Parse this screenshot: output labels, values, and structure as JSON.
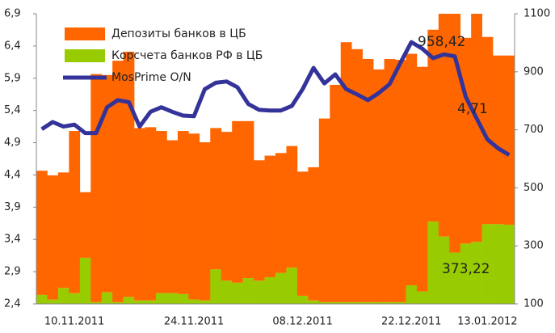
{
  "chart_data": {
    "type": "bar_line",
    "categories": [
      null,
      null,
      null,
      "10.11.2011",
      null,
      null,
      null,
      null,
      null,
      null,
      null,
      null,
      null,
      null,
      "24.11.2011",
      null,
      null,
      null,
      null,
      null,
      null,
      null,
      null,
      null,
      "08.12.2011",
      null,
      null,
      null,
      null,
      null,
      null,
      null,
      null,
      null,
      "22.12.2011",
      null,
      null,
      null,
      null,
      null,
      null,
      "13.01.2012",
      null,
      null
    ],
    "series": [
      {
        "name": "Корсчета банков РФ в ЦБ",
        "color": "#99cc00",
        "axis": "y2",
        "kind": "bar",
        "values": [
          131,
          115,
          155,
          137,
          259,
          106,
          140,
          106,
          124,
          112,
          112,
          137,
          137,
          134,
          115,
          112,
          219,
          180,
          173,
          189,
          180,
          192,
          207,
          225,
          128,
          112,
          106,
          106,
          106,
          106,
          106,
          106,
          106,
          106,
          164,
          143,
          384,
          332,
          277,
          308,
          314,
          375,
          375,
          373
        ]
      },
      {
        "name": "Депозиты банков в ЦБ",
        "color": "#ff6600",
        "axis": "y2",
        "kind": "bar",
        "values": [
          428,
          428,
          398,
          559,
          226,
          786,
          749,
          832,
          845,
          594,
          597,
          559,
          527,
          562,
          572,
          545,
          487,
          513,
          557,
          541,
          415,
          419,
          413,
          419,
          428,
          459,
          633,
          749,
          896,
          872,
          838,
          802,
          838,
          835,
          798,
          774,
          661,
          817,
          866,
          709,
          789,
          645,
          581,
          583
        ]
      },
      {
        "name": "MosPrime O/N",
        "color": "#333399",
        "axis": "y",
        "kind": "line",
        "values": [
          5.11,
          5.22,
          5.15,
          5.18,
          5.05,
          5.05,
          5.45,
          5.56,
          5.53,
          5.15,
          5.38,
          5.45,
          5.38,
          5.32,
          5.31,
          5.73,
          5.83,
          5.85,
          5.76,
          5.5,
          5.41,
          5.4,
          5.4,
          5.47,
          5.73,
          6.06,
          5.82,
          5.96,
          5.73,
          5.65,
          5.56,
          5.67,
          5.81,
          6.14,
          6.46,
          6.36,
          6.21,
          6.27,
          6.24,
          5.61,
          5.28,
          4.95,
          4.81,
          4.71
        ]
      }
    ],
    "legend_order": [
      1,
      0,
      2
    ],
    "annotations": [
      "958,42",
      "4,71",
      "373,22"
    ],
    "ylim": [
      2.4,
      6.9
    ],
    "yticks": [
      {
        "value": 2.4,
        "label": "2,4"
      },
      {
        "value": 2.9,
        "label": "2,9"
      },
      {
        "value": 3.4,
        "label": "3,4"
      },
      {
        "value": 3.9,
        "label": "3,9"
      },
      {
        "value": 4.4,
        "label": "4,4"
      },
      {
        "value": 4.9,
        "label": "4,9"
      },
      {
        "value": 5.4,
        "label": "5,4"
      },
      {
        "value": 5.9,
        "label": "5,9"
      },
      {
        "value": 6.4,
        "label": "6,4"
      },
      {
        "value": 6.9,
        "label": "6,9"
      }
    ],
    "y2lim": [
      100,
      1100
    ],
    "y2ticks": [
      100,
      300,
      500,
      700,
      900,
      1100
    ]
  }
}
